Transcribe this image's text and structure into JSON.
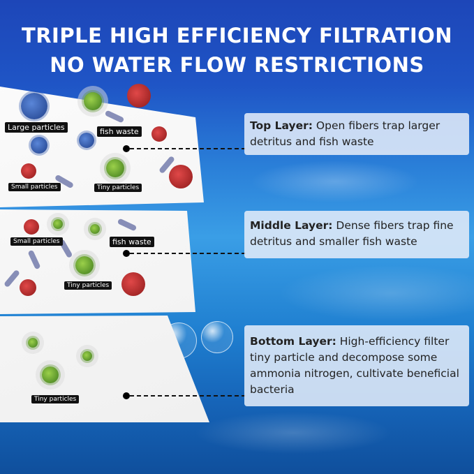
{
  "title": {
    "line1": "TRIPLE HIGH EFFICIENCY FILTRATION",
    "line2": "NO WATER FLOW RESTRICTIONS"
  },
  "pads": {
    "top": {
      "labels": [
        "Large particles",
        "fish waste",
        "Small particles",
        "Tiny particles"
      ]
    },
    "middle": {
      "labels": [
        "Small particles",
        "fish waste",
        "Tiny particles"
      ]
    },
    "bottom": {
      "labels": [
        "Tiny particles"
      ]
    }
  },
  "layers": [
    {
      "name": "Top Layer:",
      "desc": " Open fibers trap larger detritus and fish waste"
    },
    {
      "name": "Middle Layer:",
      "desc": " Dense fibers trap fine detritus and smaller fish waste"
    },
    {
      "name": "Bottom Layer:",
      "desc": " High-efficiency filter tiny particle and decompose some ammonia nitrogen, cultivate beneficial bacteria"
    }
  ],
  "colors": {
    "background_top": "#1d46b8",
    "particle_red": "#c03030",
    "particle_blue": "#2f58b0",
    "particle_green": "#6aa82e"
  }
}
